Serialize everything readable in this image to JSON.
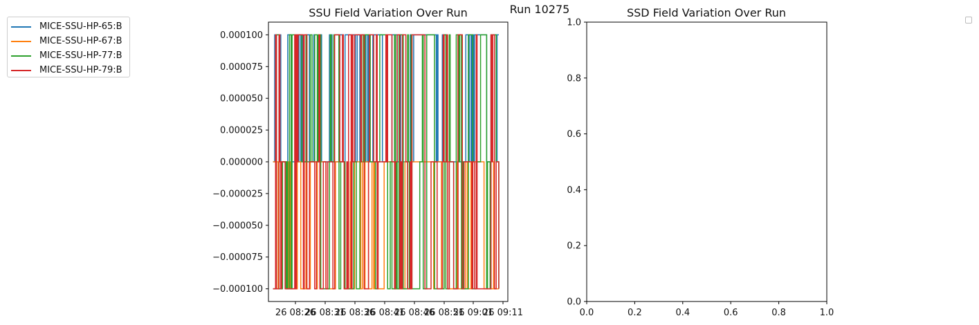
{
  "figure": {
    "suptitle": "Run 10275"
  },
  "chart_data": [
    {
      "type": "line",
      "title": "SSU Field Variation Over Run",
      "xlabel": "",
      "ylabel": "",
      "ylim": [
        -0.00011,
        0.00011
      ],
      "yticks": [
        0.0001,
        7.5e-05,
        5e-05,
        2.5e-05,
        0.0,
        -2.5e-05,
        -5e-05,
        -7.5e-05,
        -0.0001
      ],
      "ytick_labels": [
        "0.000100",
        "0.000075",
        "0.000050",
        "0.000025",
        "0.000000",
        "−0.000025",
        "−0.000050",
        "−0.000075",
        "−0.000100"
      ],
      "xticks": [
        "08:26",
        "08:31",
        "08:36",
        "08:41",
        "08:46",
        "08:51",
        "09:01",
        "09:11"
      ],
      "xtick_labels": [
        "26 08:26",
        "26 08:31",
        "26 08:36",
        "26 08:41",
        "26 08:46",
        "26 08:51",
        "26 09:01",
        "26 09:11"
      ],
      "xlim": [
        "08:20",
        "09:13"
      ],
      "x_domain": [
        "08:21",
        "09:11"
      ],
      "series": [
        {
          "name": "MICE-SSU-HP-65:B",
          "color": "#1f77b4",
          "levels": [
            0,
            0.0001
          ],
          "pattern": "toggles between 0.000000 and 0.000100"
        },
        {
          "name": "MICE-SSU-HP-67:B",
          "color": "#ff7f0e",
          "levels": [
            0,
            -0.0001
          ],
          "pattern": "toggles between 0.000000 and -0.000100"
        },
        {
          "name": "MICE-SSU-HP-77:B",
          "color": "#2ca02c",
          "levels": [
            -0.0001,
            0,
            0.0001
          ],
          "pattern": "toggles between -0.000100, 0.000000 and 0.000100"
        },
        {
          "name": "MICE-SSU-HP-79:B",
          "color": "#d62728",
          "levels": [
            -0.0001,
            0,
            0.0001
          ],
          "pattern": "toggles between -0.000100, 0.000000 and 0.000100"
        }
      ],
      "legend": "outside-left"
    },
    {
      "type": "line",
      "title": "SSD Field Variation Over Run",
      "xlim": [
        0,
        1
      ],
      "ylim": [
        0,
        1
      ],
      "xticks": [
        0.0,
        0.2,
        0.4,
        0.6,
        0.8,
        1.0
      ],
      "xtick_labels": [
        "0.0",
        "0.2",
        "0.4",
        "0.6",
        "0.8",
        "1.0"
      ],
      "yticks": [
        0.0,
        0.2,
        0.4,
        0.6,
        0.8,
        1.0
      ],
      "ytick_labels": [
        "0.0",
        "0.2",
        "0.4",
        "0.6",
        "0.8",
        "1.0"
      ],
      "series": [],
      "legend": "outside-right (empty)"
    }
  ]
}
